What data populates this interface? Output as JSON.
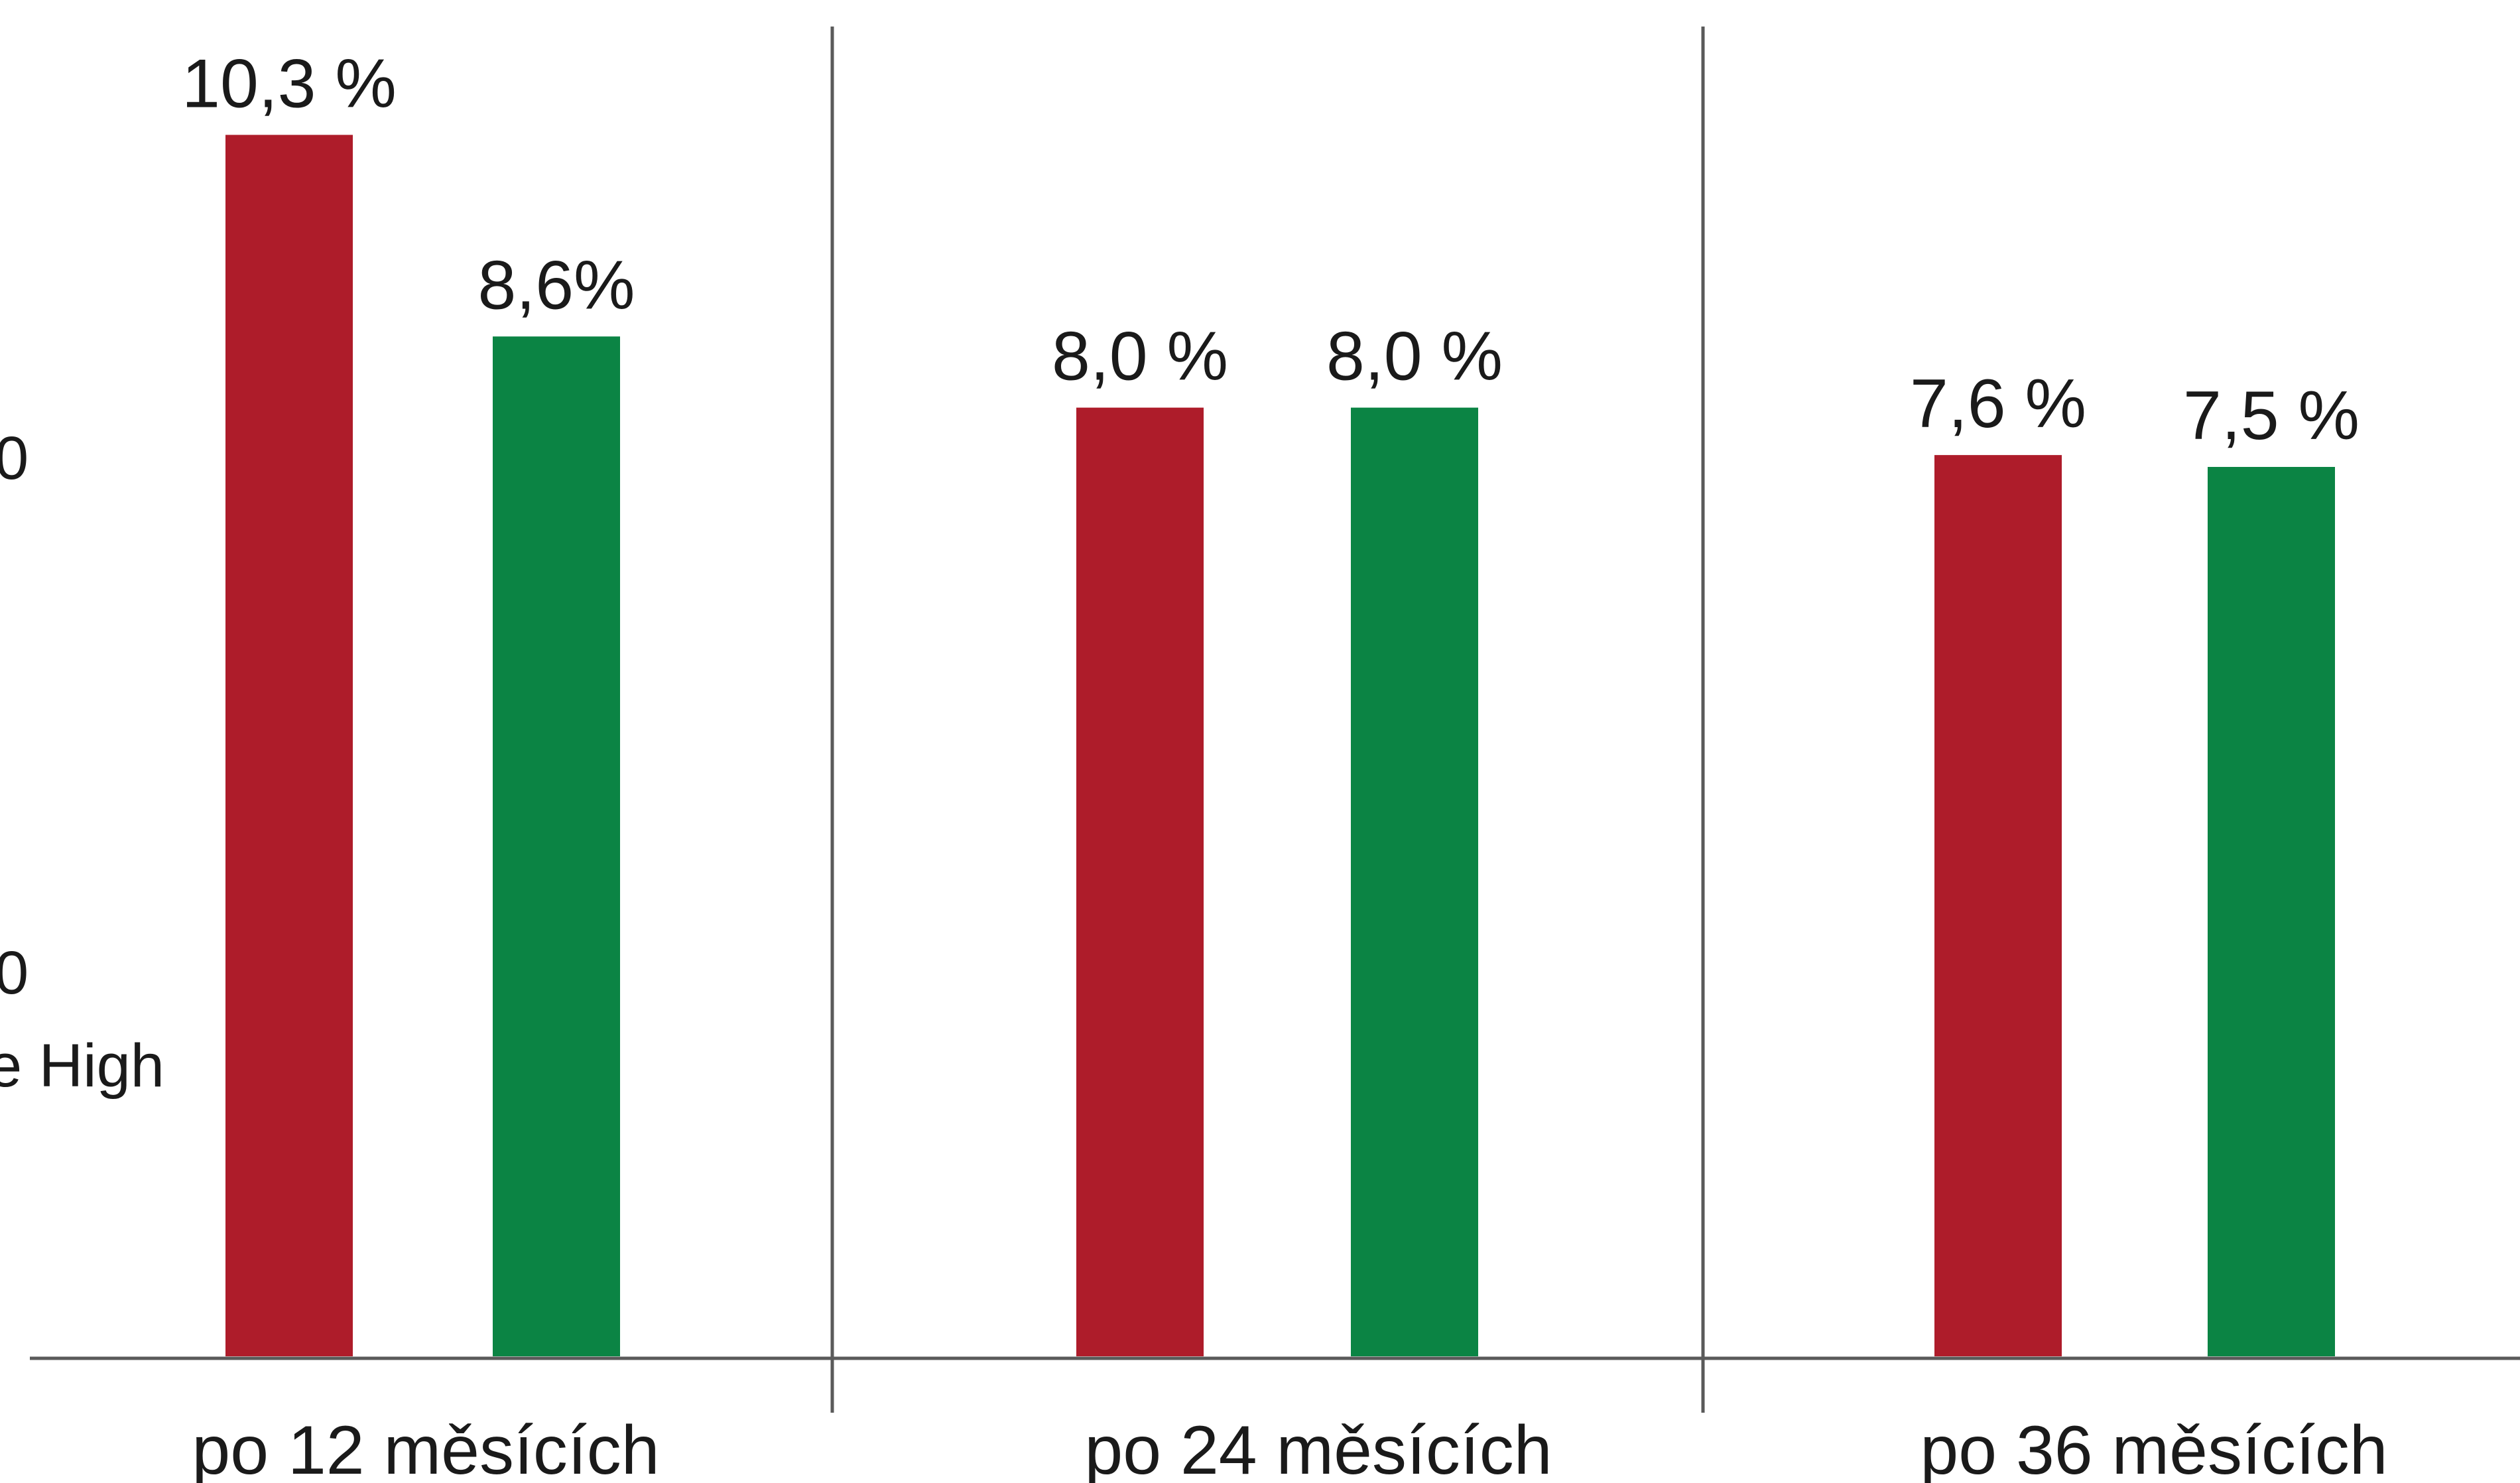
{
  "chart_data": {
    "type": "bar",
    "title": "",
    "xlabel": "",
    "ylabel": "",
    "categories": [
      "po 12 měsících",
      "po 24 měsících",
      "po 36 měsících"
    ],
    "series": [
      {
        "color": "#ae1c2a",
        "values": [
          10.3,
          8.0,
          7.6
        ],
        "labels": [
          "10,3 %",
          "8,0 %",
          "7,6 %"
        ]
      },
      {
        "color": "#0b8444",
        "values": [
          8.6,
          8.0,
          7.5
        ],
        "labels": [
          "8,6%",
          "8,0 %",
          "7,5 %"
        ]
      }
    ],
    "ylim": [
      0,
      11
    ],
    "grid": false,
    "legend": "none",
    "side_labels": [
      "0",
      "0",
      "e High"
    ]
  }
}
